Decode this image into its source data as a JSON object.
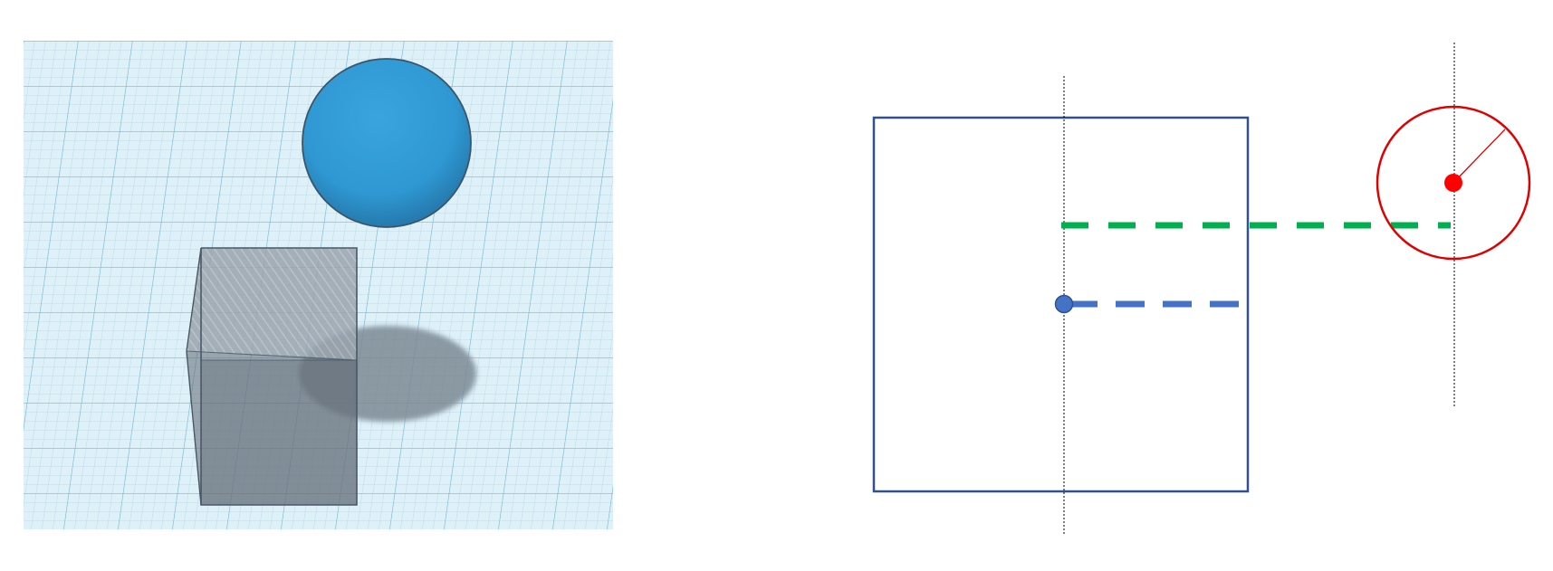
{
  "colors": {
    "background": "#ffffff",
    "grid_floor": "#dff1f8",
    "grid_minor": "#a9d9ea",
    "grid_major": "#6fbcd8",
    "sphere": "#2f98d2",
    "sphere_edge": "#3b5569",
    "box_edge": "#4a5866",
    "box_fill": "#8f99a3",
    "shadow": "#7c8a94",
    "square_outline": "#2f528f",
    "reference_line": "#000000",
    "green_dashed_line": "#00b050",
    "blue_dashed_line": "#4472c4",
    "blue_point": "#4472c4",
    "red_circle": "#e00000",
    "red_point": "#ff0000"
  },
  "scene": {
    "objects": [
      "sphere",
      "transparent-box",
      "shadow",
      "grid-workplane"
    ]
  },
  "schematic": {
    "elements": [
      "square",
      "reference-line",
      "green-dashed-line",
      "blue-dashed-line",
      "blue-point",
      "red-circle",
      "red-point",
      "radius-line"
    ]
  }
}
